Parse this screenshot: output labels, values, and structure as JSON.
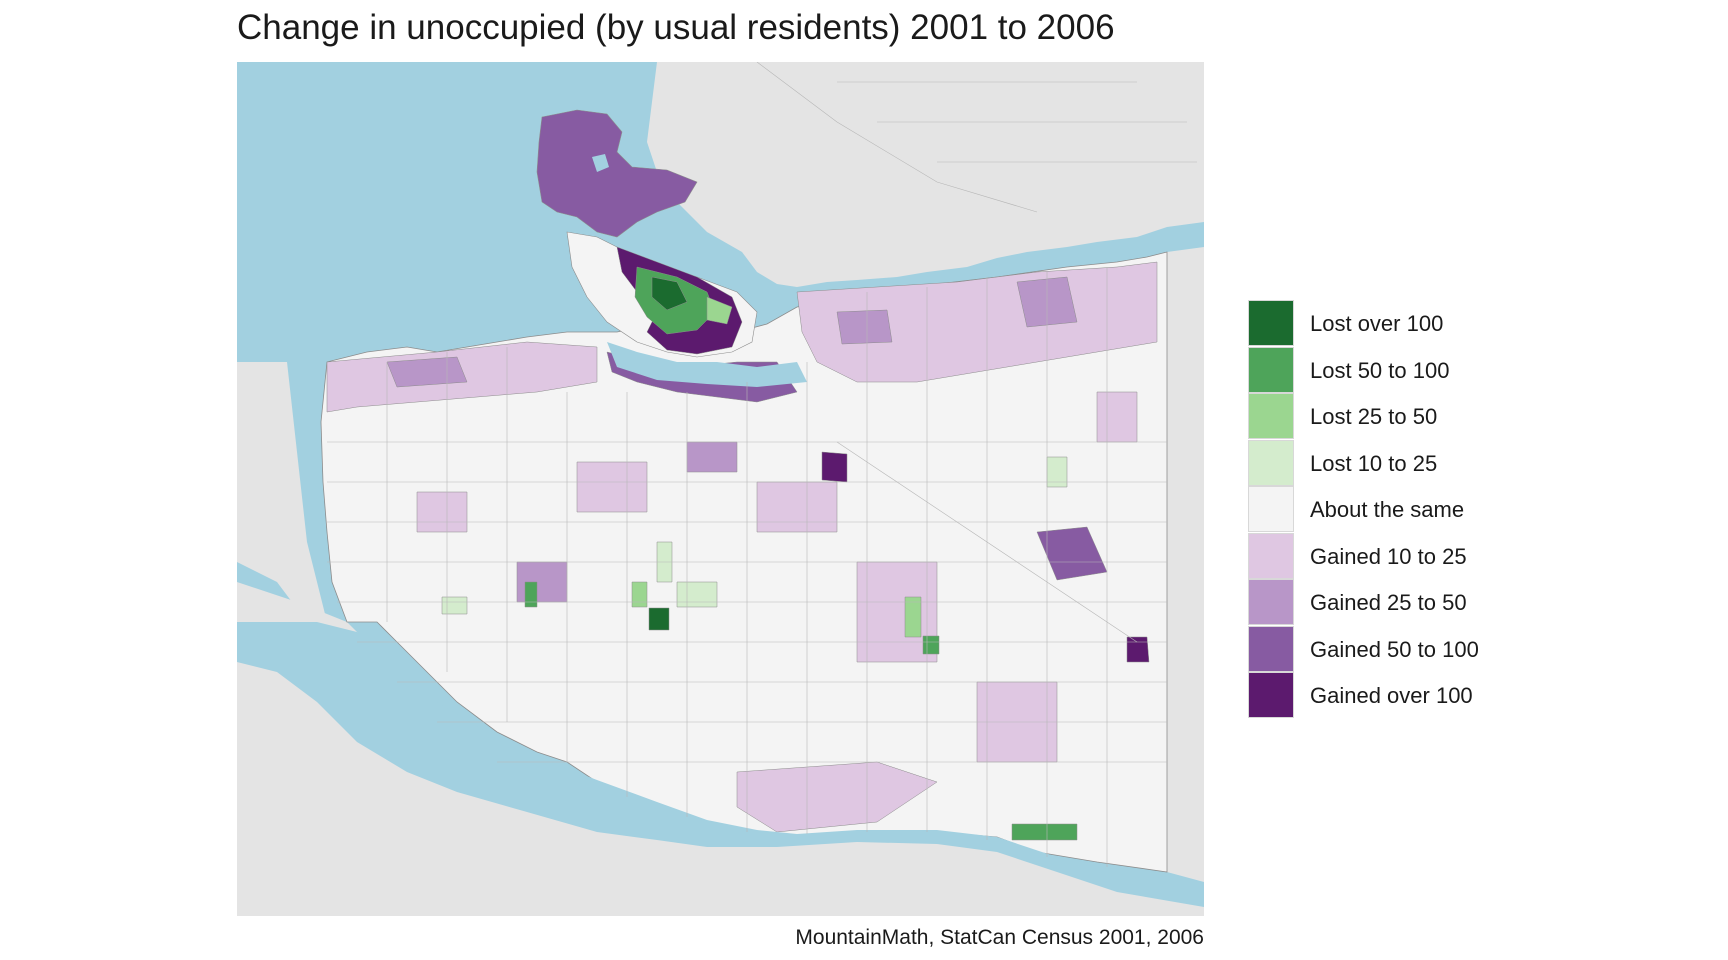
{
  "title": "Change in unoccupied (by usual residents) 2001 to 2006",
  "caption": "MountainMath, StatCan Census 2001, 2006",
  "colors": {
    "water": "#a2d0e0",
    "land": "#e4e4e4",
    "neutral": "#f4f4f4",
    "roads": "#b7b7b7",
    "boundary": "#8c8c8c"
  },
  "legend": [
    {
      "label": "Lost over 100",
      "color": "#1b6b2f"
    },
    {
      "label": "Lost 50 to 100",
      "color": "#4ea45a"
    },
    {
      "label": "Lost 25 to 50",
      "color": "#9bd690"
    },
    {
      "label": "Lost 10 to 25",
      "color": "#d4eccd"
    },
    {
      "label": "About the same",
      "color": "#f4f4f4"
    },
    {
      "label": "Gained 10 to 25",
      "color": "#dfc7e2"
    },
    {
      "label": "Gained 25 to 50",
      "color": "#b896c8"
    },
    {
      "label": "Gained 50 to 100",
      "color": "#875ba2"
    },
    {
      "label": "Gained over 100",
      "color": "#5c1a6e"
    }
  ]
}
